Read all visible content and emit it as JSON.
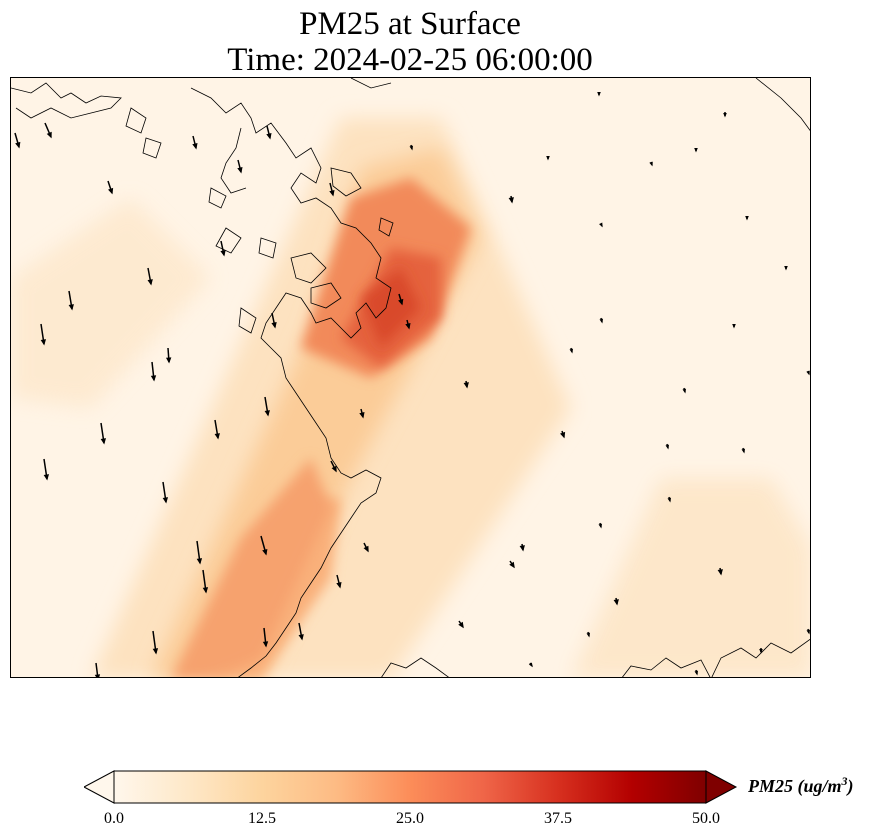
{
  "title": "PM25 at Surface",
  "subtitle": "Time: 2024-02-25 06:00:00",
  "colorbar": {
    "label_prefix": "PM25 (ug/m",
    "label_exp": "3",
    "label_suffix": ")",
    "ticks": [
      "0.0",
      "12.5",
      "25.0",
      "37.5",
      "50.0"
    ],
    "min": 0,
    "max": 50,
    "extend": "both",
    "colormap": "OrRd",
    "stops": [
      "#fff7ec",
      "#fee8c8",
      "#fdd49e",
      "#fdbb84",
      "#fc8d59",
      "#ef6548",
      "#d7301f",
      "#b30000",
      "#7f0000"
    ]
  },
  "map_features": [
    "coastline",
    "wind-vectors",
    "pm25-field"
  ],
  "chart_data": {
    "type": "heatmap",
    "title": "PM25 at Surface",
    "subtitle": "Time: 2024-02-25 06:00:00",
    "colorbar_label": "PM25 (ug/m^3)",
    "value_range": [
      0,
      50
    ],
    "description_of_field": "Diagonal high-PM25 plume along the coast, peak about 30 ug/m3, background about 2-5 ug/m3"
  }
}
